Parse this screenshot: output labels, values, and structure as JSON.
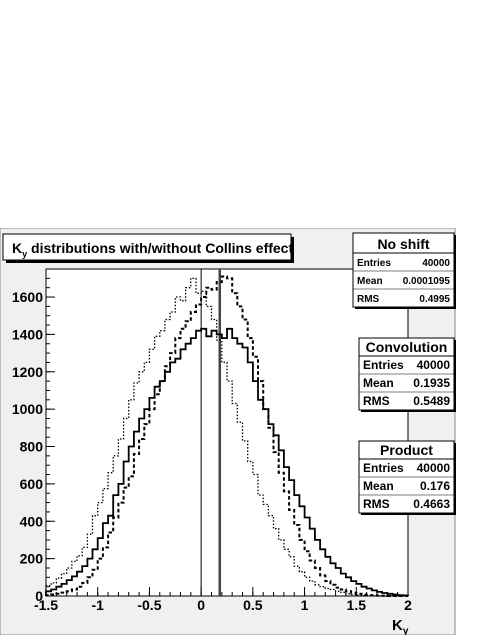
{
  "chart_data": {
    "type": "step-histogram",
    "title": {
      "main": "K",
      "sub": "y",
      "rest": " distributions with/without Collins effect"
    },
    "xlabel": {
      "main": "K",
      "sub": "y"
    },
    "ylabel": "",
    "xlim": [
      -1.5,
      2.0
    ],
    "ylim": [
      0,
      1750
    ],
    "xticks": [
      -1.5,
      -1,
      -0.5,
      0,
      0.5,
      1,
      1.5,
      2
    ],
    "xtick_labels": [
      "-1.5",
      "-1",
      "-0.5",
      "0",
      "0.5",
      "1",
      "1.5",
      "2"
    ],
    "yticks": [
      0,
      200,
      400,
      600,
      800,
      1000,
      1200,
      1400,
      1600
    ],
    "ytick_labels": [
      "0",
      "200",
      "400",
      "600",
      "800",
      "1000",
      "1200",
      "1400",
      "1600"
    ],
    "bin_width": 0.05,
    "vertical_lines": [
      0,
      0.18
    ],
    "series": [
      {
        "stat_title": "No shift",
        "style": "dotted",
        "stats": [
          {
            "label": "Entries",
            "value": "40000"
          },
          {
            "label": "Mean",
            "value": "0.0001095"
          },
          {
            "label": "RMS",
            "value": "0.4995"
          }
        ],
        "x": [
          -1.5,
          -1.45,
          -1.4,
          -1.35,
          -1.3,
          -1.25,
          -1.2,
          -1.15,
          -1.1,
          -1.05,
          -1.0,
          -0.95,
          -0.9,
          -0.85,
          -0.8,
          -0.75,
          -0.7,
          -0.65,
          -0.6,
          -0.55,
          -0.5,
          -0.45,
          -0.4,
          -0.35,
          -0.3,
          -0.25,
          -0.2,
          -0.15,
          -0.1,
          -0.05,
          0.0,
          0.05,
          0.1,
          0.15,
          0.2,
          0.25,
          0.3,
          0.35,
          0.4,
          0.45,
          0.5,
          0.55,
          0.6,
          0.65,
          0.7,
          0.75,
          0.8,
          0.85,
          0.9,
          0.95,
          1.0,
          1.05,
          1.1,
          1.15,
          1.2,
          1.25,
          1.3,
          1.35,
          1.4,
          1.45,
          1.5,
          1.55,
          1.6,
          1.65,
          1.7,
          1.75,
          1.8,
          1.85,
          1.9,
          1.95
        ],
        "values": [
          55,
          70,
          95,
          120,
          150,
          185,
          215,
          260,
          330,
          430,
          500,
          575,
          660,
          750,
          840,
          950,
          1050,
          1140,
          1200,
          1250,
          1320,
          1390,
          1420,
          1480,
          1520,
          1600,
          1580,
          1650,
          1700,
          1620,
          1630,
          1550,
          1480,
          1370,
          1250,
          1150,
          1030,
          930,
          830,
          720,
          650,
          540,
          490,
          430,
          360,
          300,
          250,
          210,
          160,
          130,
          100,
          80,
          60,
          50,
          40,
          35,
          25,
          20,
          12,
          8,
          5,
          3,
          2,
          1,
          0,
          0,
          0,
          0,
          0,
          0
        ]
      },
      {
        "stat_title": "Convolution",
        "style": "solid",
        "stats": [
          {
            "label": "Entries",
            "value": "40000"
          },
          {
            "label": "Mean",
            "value": "0.1935"
          },
          {
            "label": "RMS",
            "value": "0.5489"
          }
        ],
        "x": [
          -1.5,
          -1.45,
          -1.4,
          -1.35,
          -1.3,
          -1.25,
          -1.2,
          -1.15,
          -1.1,
          -1.05,
          -1.0,
          -0.95,
          -0.9,
          -0.85,
          -0.8,
          -0.75,
          -0.7,
          -0.65,
          -0.6,
          -0.55,
          -0.5,
          -0.45,
          -0.4,
          -0.35,
          -0.3,
          -0.25,
          -0.2,
          -0.15,
          -0.1,
          -0.05,
          0.0,
          0.05,
          0.1,
          0.15,
          0.2,
          0.25,
          0.3,
          0.35,
          0.4,
          0.45,
          0.5,
          0.55,
          0.6,
          0.65,
          0.7,
          0.75,
          0.8,
          0.85,
          0.9,
          0.95,
          1.0,
          1.05,
          1.1,
          1.15,
          1.2,
          1.25,
          1.3,
          1.35,
          1.4,
          1.45,
          1.5,
          1.55,
          1.6,
          1.65,
          1.7,
          1.75,
          1.8,
          1.85,
          1.9,
          1.95
        ],
        "values": [
          25,
          35,
          50,
          65,
          85,
          105,
          130,
          160,
          200,
          250,
          310,
          390,
          430,
          540,
          600,
          720,
          800,
          880,
          950,
          1000,
          1060,
          1120,
          1150,
          1200,
          1250,
          1270,
          1320,
          1350,
          1380,
          1420,
          1430,
          1390,
          1420,
          1400,
          1380,
          1430,
          1380,
          1350,
          1330,
          1250,
          1150,
          1050,
          1000,
          920,
          860,
          780,
          690,
          620,
          540,
          480,
          420,
          360,
          300,
          250,
          210,
          175,
          150,
          120,
          100,
          80,
          65,
          50,
          40,
          30,
          22,
          16,
          12,
          8,
          5,
          3
        ]
      },
      {
        "stat_title": "Product",
        "style": "dashed",
        "stats": [
          {
            "label": "Entries",
            "value": "40000"
          },
          {
            "label": "Mean",
            "value": "0.176"
          },
          {
            "label": "RMS",
            "value": "0.4663"
          }
        ],
        "x": [
          -1.5,
          -1.45,
          -1.4,
          -1.35,
          -1.3,
          -1.25,
          -1.2,
          -1.15,
          -1.1,
          -1.05,
          -1.0,
          -0.95,
          -0.9,
          -0.85,
          -0.8,
          -0.75,
          -0.7,
          -0.65,
          -0.6,
          -0.55,
          -0.5,
          -0.45,
          -0.4,
          -0.35,
          -0.3,
          -0.25,
          -0.2,
          -0.15,
          -0.1,
          -0.05,
          0.0,
          0.05,
          0.1,
          0.15,
          0.2,
          0.25,
          0.3,
          0.35,
          0.4,
          0.45,
          0.5,
          0.55,
          0.6,
          0.65,
          0.7,
          0.75,
          0.8,
          0.85,
          0.9,
          0.95,
          1.0,
          1.05,
          1.1,
          1.15,
          1.2,
          1.25,
          1.3,
          1.35,
          1.4,
          1.45,
          1.5,
          1.55,
          1.6,
          1.65,
          1.7,
          1.75,
          1.8,
          1.85,
          1.9,
          1.95
        ],
        "values": [
          5,
          8,
          12,
          18,
          25,
          35,
          50,
          70,
          100,
          140,
          200,
          260,
          340,
          420,
          500,
          580,
          640,
          760,
          840,
          920,
          1000,
          1080,
          1150,
          1230,
          1300,
          1380,
          1430,
          1470,
          1520,
          1560,
          1600,
          1650,
          1640,
          1680,
          1710,
          1700,
          1620,
          1550,
          1480,
          1380,
          1280,
          1150,
          1000,
          900,
          770,
          660,
          560,
          460,
          380,
          300,
          240,
          190,
          150,
          110,
          80,
          60,
          45,
          35,
          25,
          18,
          12,
          8,
          5,
          3,
          2,
          1,
          0,
          0,
          0,
          0
        ]
      }
    ]
  }
}
